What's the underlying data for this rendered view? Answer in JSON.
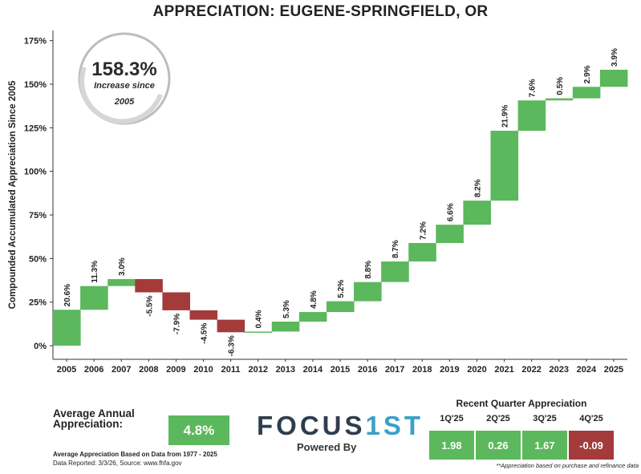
{
  "colors": {
    "positive": "#5cb85c",
    "negative": "#a33b3b",
    "text": "#222222",
    "circle": "#bdbdbd"
  },
  "chart_data": {
    "type": "bar",
    "title": "APPRECIATION:  EUGENE-SPRINGFIELD, OR",
    "ylabel": "Compounded Accumulated Appreciation Since 2005",
    "xlabel": "",
    "ylim": [
      -5,
      178
    ],
    "yticks": [
      "0%",
      "25%",
      "50%",
      "75%",
      "100%",
      "125%",
      "150%",
      "175%"
    ],
    "categories": [
      "2005",
      "2006",
      "2007",
      "2008",
      "2009",
      "2010",
      "2011",
      "2012",
      "2013",
      "2014",
      "2015",
      "2016",
      "2017",
      "2018",
      "2019",
      "2020",
      "2021",
      "2022",
      "2023",
      "2024",
      "2025"
    ],
    "series": [
      {
        "values": [
          20.6,
          11.3,
          3.0,
          -5.5,
          -7.9,
          -4.5,
          -6.3,
          0.4,
          5.3,
          4.8,
          5.2,
          8.8,
          8.7,
          7.2,
          6.6,
          8.2,
          21.9,
          7.6,
          0.5,
          2.9,
          3.9
        ],
        "labels": [
          "20.6%",
          "11.3%",
          "3.0%",
          "-5.5%",
          "-7.9%",
          "-4.5%",
          "-6.3%",
          "0.4%",
          "5.3%",
          "4.8%",
          "5.2%",
          "8.8%",
          "8.7%",
          "7.2%",
          "6.6%",
          "8.2%",
          "21.9%",
          "7.6%",
          "0.5%",
          "2.9%",
          "3.9%"
        ],
        "cumulative_start": [
          0.0,
          20.6,
          34.2,
          38.2,
          30.6,
          20.3,
          14.9,
          7.7,
          8.1,
          13.8,
          19.3,
          25.5,
          36.5,
          48.3,
          58.9,
          69.4,
          83.2,
          123.3,
          140.7,
          141.9,
          148.5
        ],
        "cumulative_end": [
          20.6,
          34.2,
          38.2,
          30.6,
          20.3,
          14.9,
          7.7,
          8.1,
          13.8,
          19.3,
          25.5,
          36.5,
          48.3,
          58.9,
          69.4,
          83.2,
          123.3,
          140.7,
          141.9,
          148.5,
          158.3
        ]
      }
    ],
    "grid": false,
    "badge": {
      "value": "158.3%",
      "line1": "Increase since",
      "line2": "2005"
    }
  },
  "footer": {
    "avg_label": "Average Annual Appreciation:",
    "avg_value": "4.8%",
    "avg_note": "Average Appreciation Based on Data from 1977 - 2025",
    "data_reported": "Data Reported: 3/3/26, Source: www.fhfa.gov",
    "logo_part1": "FOCUS",
    "logo_part2": "1ST",
    "powered_by": "Powered By"
  },
  "recent_quarters": {
    "title": "Recent Quarter Appreciation",
    "items": [
      {
        "label": "1Q'25",
        "value": "1.98",
        "sign": "positive"
      },
      {
        "label": "2Q'25",
        "value": "0.26",
        "sign": "positive"
      },
      {
        "label": "3Q'25",
        "value": "1.67",
        "sign": "positive"
      },
      {
        "label": "4Q'25",
        "value": "-0.09",
        "sign": "negative"
      }
    ],
    "note": "**Appreciation based on purchase and refinance data"
  }
}
